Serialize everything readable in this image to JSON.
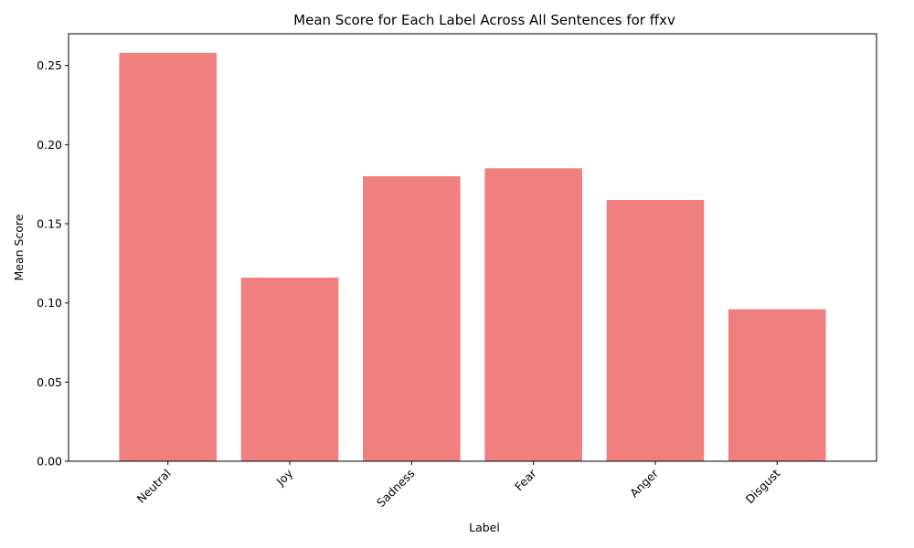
{
  "chart_data": {
    "type": "bar",
    "title": "Mean Score for Each Label Across All Sentences for ffxv",
    "xlabel": "Label",
    "ylabel": "Mean Score",
    "categories": [
      "Neutral",
      "Joy",
      "Sadness",
      "Fear",
      "Anger",
      "Disgust"
    ],
    "values": [
      0.258,
      0.116,
      0.18,
      0.185,
      0.165,
      0.096
    ],
    "ylim": [
      0,
      0.27
    ],
    "yticks": [
      "0.00",
      "0.05",
      "0.10",
      "0.15",
      "0.20",
      "0.25"
    ],
    "bar_color": "#f08080",
    "grid": false,
    "legend": "none",
    "x_tick_rotation": "45 degrees"
  }
}
